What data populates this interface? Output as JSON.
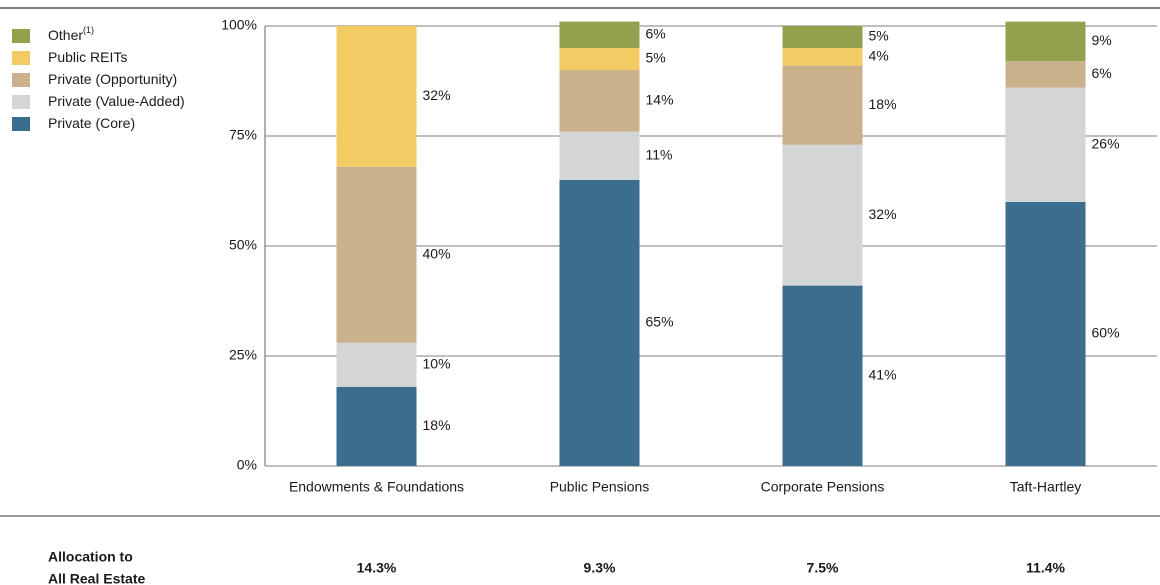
{
  "chart_data": {
    "type": "stacked_bar",
    "categories": [
      "Endowments & Foundations",
      "Public Pensions",
      "Corporate Pensions",
      "Taft-Hartley"
    ],
    "series": [
      {
        "name": "Private (Core)",
        "color": "#3b6d8e",
        "values": [
          18,
          65,
          41,
          60
        ],
        "value_labels": [
          "18%",
          "65%",
          "41%",
          "60%"
        ]
      },
      {
        "name": "Private (Value-Added)",
        "color": "#d4d5d7",
        "values": [
          10,
          11,
          32,
          26
        ],
        "value_labels": [
          "10%",
          "11%",
          "32%",
          "26%"
        ]
      },
      {
        "name": "Private (Opportunity)",
        "color": "#c9b18b",
        "values": [
          40,
          14,
          18,
          6
        ],
        "value_labels": [
          "40%",
          "14%",
          "18%",
          "6%"
        ]
      },
      {
        "name": "Public REITs",
        "color": "#f2cb62",
        "values": [
          32,
          5,
          4,
          null
        ],
        "value_labels": [
          "32%",
          "5%",
          "4%",
          null
        ]
      },
      {
        "name": "Other",
        "footnote": "(1)",
        "color": "#93a04e",
        "values": [
          null,
          6,
          5,
          9
        ],
        "value_labels": [
          null,
          "6%",
          "5%",
          "9%"
        ]
      }
    ],
    "ylim": [
      0,
      100
    ],
    "yticks": [
      {
        "value": 0,
        "label": "0%"
      },
      {
        "value": 25,
        "label": "25%"
      },
      {
        "value": 50,
        "label": "50%"
      },
      {
        "value": 75,
        "label": "75%"
      },
      {
        "value": 100,
        "label": "100%"
      }
    ],
    "grid": true,
    "legend": "left",
    "allocation": {
      "label_lines": [
        "Allocation to",
        "All Real Estate"
      ],
      "values": [
        14.3,
        9.3,
        7.5,
        11.4
      ],
      "value_labels": [
        "14.3%",
        "9.3%",
        "7.5%",
        "11.4%"
      ]
    }
  }
}
